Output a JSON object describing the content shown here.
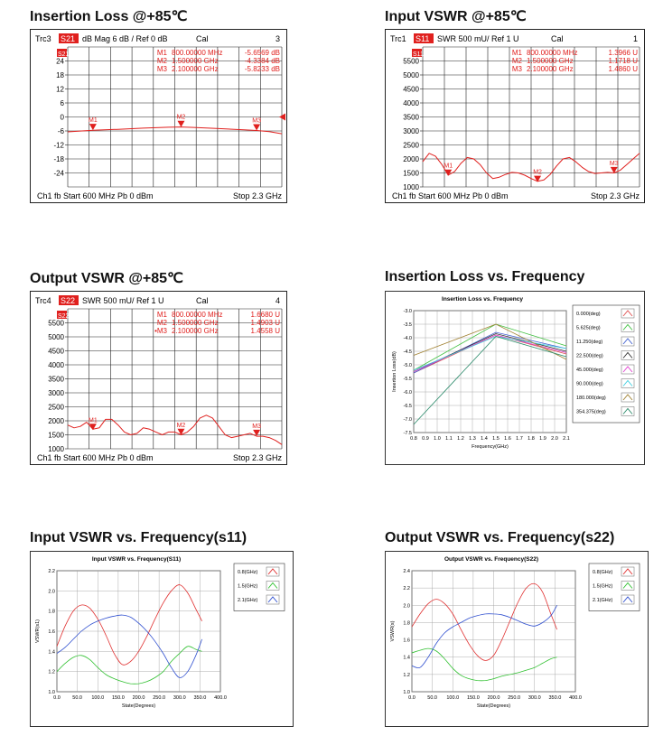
{
  "titles": {
    "p1": "Insertion Loss @+85℃",
    "p2": "Input VSWR @+85℃",
    "p3": "Output VSWR @+85℃",
    "p4": "Insertion Loss vs. Frequency",
    "p5": "Input  VSWR vs. Frequency(s11)",
    "p6": "Output  VSWR  vs. Frequency(s22)"
  },
  "colors": {
    "trace": "#e0201e",
    "trace_label_bg": "#e0201e",
    "grid": "#000000"
  },
  "chart_data": [
    {
      "type": "line",
      "header": {
        "trc": "Trc3",
        "param": "S21",
        "fmt": "dB Mag  6 dB /  Ref 0 dB",
        "cal": "Cal",
        "num": "3"
      },
      "footer": {
        "left": "Ch1  fb  Start  600 MHz   Pb    0 dBm",
        "right": "Stop  2.3 GHz"
      },
      "yticks": [
        "24",
        "18",
        "12",
        "6",
        "0",
        "-6",
        "-12",
        "-18",
        "-24"
      ],
      "ylim": [
        -30,
        30
      ],
      "xlim_mhz": [
        600,
        2300
      ],
      "ref_level": 0,
      "markers": [
        {
          "name": "M1",
          "freq": "800.00000 MHz",
          "value": "-5.6569 dB",
          "x": 800,
          "y": -5.66
        },
        {
          "name": "M2",
          "freq": "1.500000 GHz",
          "value": "-4.3384 dB",
          "x": 1500,
          "y": -4.34
        },
        {
          "name": "M3",
          "freq": "2.100000 GHz",
          "value": "-5.8233 dB",
          "x": 2100,
          "y": -5.82
        }
      ],
      "trace_x": [
        600,
        800,
        1000,
        1200,
        1400,
        1500,
        1600,
        1800,
        2000,
        2100,
        2200,
        2300
      ],
      "trace_y": [
        -6.4,
        -5.7,
        -5.3,
        -4.8,
        -4.4,
        -4.3,
        -4.5,
        -5.0,
        -5.5,
        -5.8,
        -6.3,
        -7.2
      ]
    },
    {
      "type": "line",
      "header": {
        "trc": "Trc1",
        "param": "S11",
        "fmt": "SWR   500 mU/  Ref 1 U",
        "cal": "Cal",
        "num": "1"
      },
      "footer": {
        "left": "Ch1  fb  Start  600 MHz   Pb    0 dBm",
        "right": "Stop  2.3 GHz"
      },
      "yticks": [
        "5500",
        "5000",
        "4500",
        "4000",
        "3500",
        "3000",
        "2500",
        "2000",
        "1500",
        "1000"
      ],
      "ylim": [
        1,
        6
      ],
      "markers": [
        {
          "name": "M1",
          "freq": "800.00000 MHz",
          "value": "1.3966 U",
          "x": 800,
          "y": 1.3966
        },
        {
          "name": "M2",
          "freq": "1.500000 GHz",
          "value": "1.1718 U",
          "x": 1500,
          "y": 1.1718
        },
        {
          "name": "M3",
          "freq": "2.100000 GHz",
          "value": "1.4860 U",
          "x": 2100,
          "y": 1.486
        }
      ],
      "trace_x": [
        600,
        650,
        700,
        750,
        800,
        850,
        900,
        950,
        1000,
        1050,
        1100,
        1150,
        1200,
        1250,
        1300,
        1350,
        1400,
        1450,
        1500,
        1550,
        1600,
        1650,
        1700,
        1750,
        1800,
        1850,
        1900,
        1950,
        2000,
        2050,
        2100,
        2150,
        2200,
        2250,
        2300
      ],
      "trace_y": [
        1.9,
        2.2,
        2.1,
        1.8,
        1.42,
        1.55,
        1.85,
        2.05,
        2.0,
        1.8,
        1.5,
        1.3,
        1.35,
        1.45,
        1.52,
        1.5,
        1.42,
        1.3,
        1.2,
        1.25,
        1.45,
        1.75,
        2.0,
        2.05,
        1.9,
        1.7,
        1.55,
        1.48,
        1.5,
        1.52,
        1.5,
        1.6,
        1.8,
        2.0,
        2.2
      ]
    },
    {
      "type": "line",
      "header": {
        "trc": "Trc4",
        "param": "S22",
        "fmt": "SWR   500 mU/  Ref 1 U",
        "cal": "Cal",
        "num": "4"
      },
      "footer": {
        "left": "Ch1  fb  Start  600 MHz   Pb    0 dBm",
        "right": "Stop  2.3 GHz"
      },
      "yticks": [
        "5500",
        "5000",
        "4500",
        "4000",
        "3500",
        "3000",
        "2500",
        "2000",
        "1500",
        "1000"
      ],
      "ylim": [
        1,
        6
      ],
      "markers": [
        {
          "name": "M1",
          "freq": "800.00000 MHz",
          "value": "1.6680 U",
          "x": 800,
          "y": 1.668
        },
        {
          "name": "M2",
          "freq": "1.500000 GHz",
          "value": "1.4903 U",
          "x": 1500,
          "y": 1.4903
        },
        {
          "name": "•M3",
          "freq": "2.100000 GHz",
          "value": "1.4558 U",
          "x": 2100,
          "y": 1.4558
        }
      ],
      "trace_x": [
        600,
        650,
        700,
        750,
        800,
        850,
        900,
        950,
        1000,
        1050,
        1100,
        1150,
        1200,
        1250,
        1300,
        1350,
        1400,
        1450,
        1500,
        1550,
        1600,
        1650,
        1700,
        1750,
        1800,
        1850,
        1900,
        1950,
        2000,
        2050,
        2100,
        2150,
        2200,
        2250,
        2300
      ],
      "trace_y": [
        1.85,
        1.75,
        1.8,
        1.95,
        1.7,
        1.75,
        2.05,
        2.05,
        1.85,
        1.6,
        1.5,
        1.55,
        1.75,
        1.7,
        1.6,
        1.5,
        1.6,
        1.6,
        1.5,
        1.6,
        1.8,
        2.1,
        2.2,
        2.1,
        1.8,
        1.5,
        1.4,
        1.45,
        1.5,
        1.55,
        1.45,
        1.45,
        1.4,
        1.3,
        1.15
      ]
    },
    {
      "type": "line",
      "title": "Insertion Loss vs. Frequency",
      "xlabel": "Frequency(GHz)",
      "ylabel": "Insertion Loss(dB)",
      "xlim": [
        0.8,
        2.1
      ],
      "ylim": [
        -7.5,
        -3.0
      ],
      "xticks": [
        "0.8",
        "0.9",
        "1.0",
        "1.1",
        "1.2",
        "1.3",
        "1.4",
        "1.5",
        "1.6",
        "1.7",
        "1.8",
        "1.9",
        "2.0",
        "2.1"
      ],
      "yticks": [
        "-3.0",
        "-3.5",
        "-4.0",
        "-4.5",
        "-5.0",
        "-5.5",
        "-6.0",
        "-6.5",
        "-7.0",
        "-7.5"
      ],
      "x": [
        0.8,
        1.5,
        2.1
      ],
      "series": [
        {
          "name": "0.000(deg)",
          "color": "#e05050",
          "values": [
            -5.3,
            -3.9,
            -4.6
          ]
        },
        {
          "name": "5.625(deg)",
          "color": "#40c040",
          "values": [
            -5.2,
            -3.5,
            -4.3
          ]
        },
        {
          "name": "11.250(deg)",
          "color": "#4060d0",
          "values": [
            -5.3,
            -3.8,
            -4.4
          ]
        },
        {
          "name": "22.500(deg)",
          "color": "#303030",
          "values": [
            -5.25,
            -3.85,
            -4.5
          ]
        },
        {
          "name": "45.000(deg)",
          "color": "#e040d0",
          "values": [
            -5.25,
            -3.9,
            -4.55
          ]
        },
        {
          "name": "90.000(deg)",
          "color": "#40d0e0",
          "values": [
            -5.2,
            -3.95,
            -4.4
          ]
        },
        {
          "name": "180.000(deg)",
          "color": "#a08030",
          "values": [
            -4.65,
            -3.5,
            -4.8
          ]
        },
        {
          "name": "354.375(deg)",
          "color": "#2a8a6a",
          "values": [
            -7.2,
            -3.95,
            -4.7
          ]
        }
      ]
    },
    {
      "type": "line",
      "title": "Input VSWR vs. Frequency(S11)",
      "xlabel": "State(Degrees)",
      "ylabel": "VSWR(s1)",
      "xlim": [
        0,
        400
      ],
      "ylim": [
        1.0,
        2.2
      ],
      "xticks": [
        "0.0",
        "50.0",
        "100.0",
        "150.0",
        "200.0",
        "250.0",
        "300.0",
        "350.0",
        "400.0"
      ],
      "yticks": [
        "2.2",
        "2.0",
        "1.8",
        "1.6",
        "1.4",
        "1.2",
        "1.0"
      ],
      "x": [
        0,
        20,
        40,
        60,
        80,
        100,
        120,
        140,
        160,
        180,
        200,
        220,
        240,
        260,
        280,
        300,
        320,
        340,
        355
      ],
      "series": [
        {
          "name": "0.8(GHz)",
          "color": "#e03030",
          "values": [
            1.45,
            1.65,
            1.8,
            1.86,
            1.83,
            1.72,
            1.56,
            1.38,
            1.27,
            1.3,
            1.4,
            1.55,
            1.72,
            1.88,
            2.0,
            2.06,
            1.98,
            1.82,
            1.7
          ]
        },
        {
          "name": "1.5(GHz)",
          "color": "#30c030",
          "values": [
            1.2,
            1.28,
            1.34,
            1.36,
            1.32,
            1.24,
            1.17,
            1.13,
            1.1,
            1.08,
            1.08,
            1.1,
            1.14,
            1.2,
            1.3,
            1.38,
            1.45,
            1.42,
            1.4
          ]
        },
        {
          "name": "2.1(GHz)",
          "color": "#3050d0",
          "values": [
            1.38,
            1.44,
            1.52,
            1.6,
            1.66,
            1.7,
            1.73,
            1.75,
            1.76,
            1.74,
            1.68,
            1.6,
            1.5,
            1.38,
            1.24,
            1.14,
            1.2,
            1.36,
            1.52
          ]
        }
      ]
    },
    {
      "type": "line",
      "title": "Output VSWR vs. Frequency(S22)",
      "xlabel": "State(Degrees)",
      "ylabel": "VSWR(s)",
      "xlim": [
        0,
        400
      ],
      "ylim": [
        1.0,
        2.4
      ],
      "xticks": [
        "0.0",
        "50.0",
        "100.0",
        "150.0",
        "200.0",
        "250.0",
        "300.0",
        "350.0",
        "400.0"
      ],
      "yticks": [
        "2.4",
        "2.2",
        "2.0",
        "1.8",
        "1.6",
        "1.4",
        "1.2",
        "1.0"
      ],
      "x": [
        0,
        20,
        40,
        60,
        80,
        100,
        120,
        140,
        160,
        180,
        200,
        220,
        240,
        260,
        280,
        300,
        320,
        340,
        355
      ],
      "series": [
        {
          "name": "0.8(GHz)",
          "color": "#e03030",
          "values": [
            1.75,
            1.9,
            2.02,
            2.07,
            2.02,
            1.9,
            1.72,
            1.55,
            1.42,
            1.36,
            1.42,
            1.6,
            1.82,
            2.04,
            2.2,
            2.25,
            2.15,
            1.9,
            1.72
          ]
        },
        {
          "name": "1.5(GHz)",
          "color": "#30c030",
          "values": [
            1.45,
            1.48,
            1.5,
            1.47,
            1.38,
            1.27,
            1.19,
            1.15,
            1.13,
            1.13,
            1.15,
            1.18,
            1.2,
            1.22,
            1.25,
            1.28,
            1.33,
            1.38,
            1.4
          ]
        },
        {
          "name": "2.1(GHz)",
          "color": "#3050d0",
          "values": [
            1.3,
            1.28,
            1.4,
            1.56,
            1.68,
            1.75,
            1.8,
            1.85,
            1.88,
            1.9,
            1.9,
            1.89,
            1.86,
            1.82,
            1.78,
            1.76,
            1.8,
            1.88,
            2.0
          ]
        }
      ]
    }
  ]
}
